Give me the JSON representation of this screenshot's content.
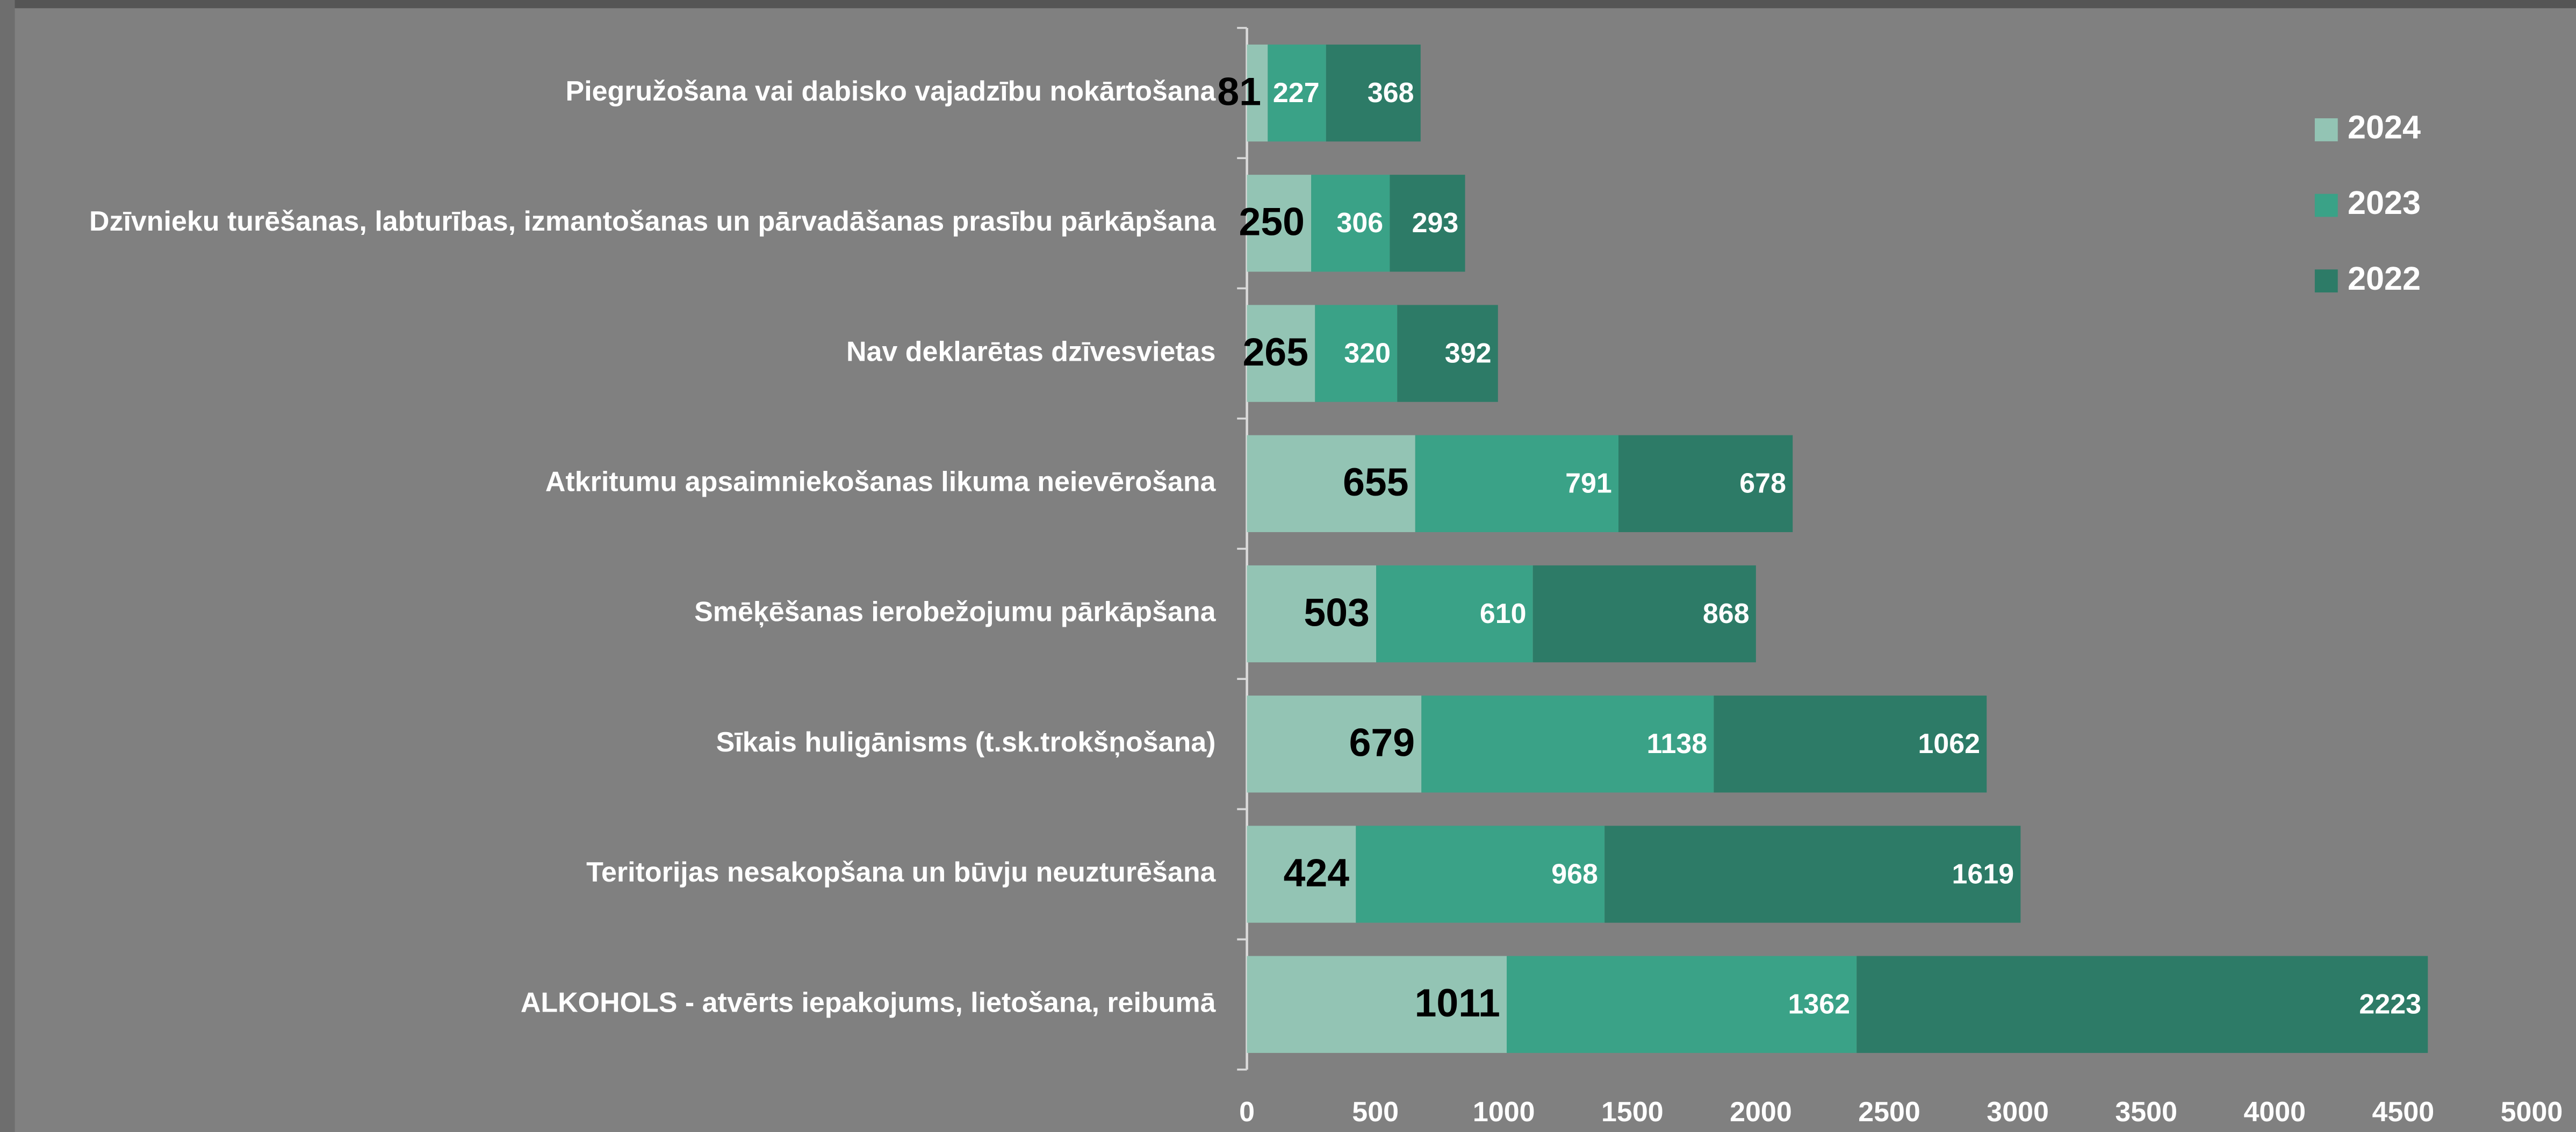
{
  "chart_data": {
    "type": "stacked_barh",
    "categories": [
      "Piegružošana vai dabisko vajadzību nokārtošana",
      "Dzīvnieku turēšanas, labturības, izmantošanas un pārvadāšanas prasību pārkāpšana",
      "Nav deklarētas dzīvesvietas",
      "Atkritumu apsaimniekošanas likuma neievērošana",
      "Smēķēšanas ierobežojumu pārkāpšana",
      "Sīkais huligānisms (t.sk.trokšņošana)",
      "Teritorijas nesakopšana un būvju neuzturēšana",
      "ALKOHOLS - atvērts iepakojums, lietošana, reibumā"
    ],
    "series": [
      {
        "name": "2024",
        "color": "#93c4b4",
        "values": [
          81,
          250,
          265,
          655,
          503,
          679,
          424,
          1011
        ]
      },
      {
        "name": "2023",
        "color": "#3aa287",
        "values": [
          227,
          306,
          320,
          791,
          610,
          1138,
          968,
          1362
        ]
      },
      {
        "name": "2022",
        "color": "#2d7b67",
        "values": [
          368,
          293,
          392,
          678,
          868,
          1062,
          1619,
          2223
        ]
      }
    ],
    "xlim": [
      0,
      5000
    ],
    "xticks": [
      0,
      500,
      1000,
      1500,
      2000,
      2500,
      3000,
      3500,
      4000,
      4500,
      5000
    ],
    "legend": "right"
  }
}
